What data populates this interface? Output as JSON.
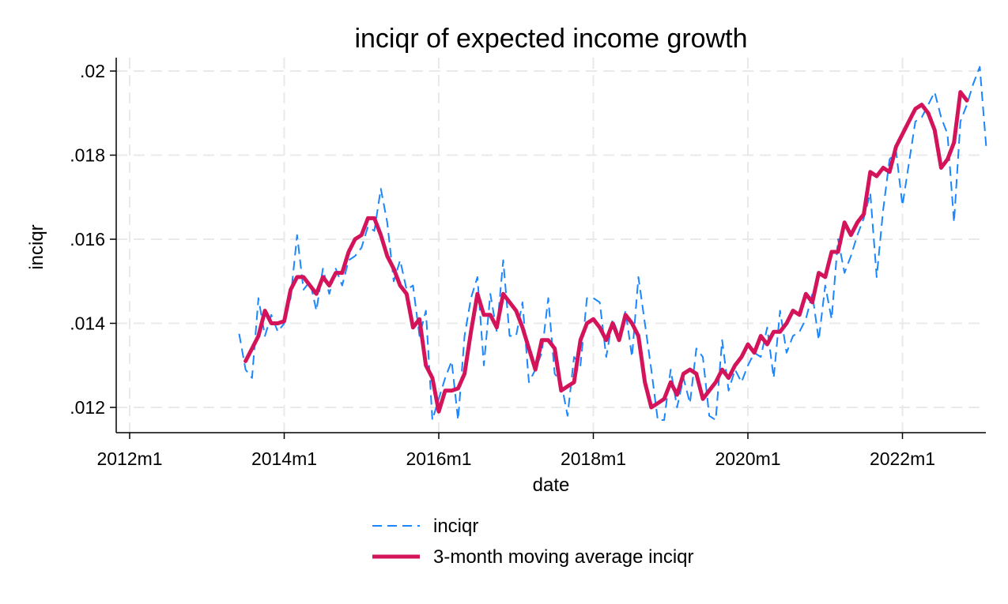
{
  "chart_data": {
    "type": "line",
    "title": "inciqr of expected income growth",
    "xlabel": "date",
    "ylabel": "inciqr",
    "xlim": [
      "2011-10",
      "2022-12"
    ],
    "ylim": [
      0.0114,
      0.0203
    ],
    "x_ticks": [
      {
        "value": "2012-01",
        "label": "2012m1"
      },
      {
        "value": "2014-01",
        "label": "2014m1"
      },
      {
        "value": "2016-01",
        "label": "2016m1"
      },
      {
        "value": "2018-01",
        "label": "2018m1"
      },
      {
        "value": "2020-01",
        "label": "2020m1"
      },
      {
        "value": "2022-01",
        "label": "2022m1"
      }
    ],
    "y_ticks": [
      {
        "value": 0.012,
        "label": ".012"
      },
      {
        "value": 0.014,
        "label": ".014"
      },
      {
        "value": 0.016,
        "label": ".016"
      },
      {
        "value": 0.018,
        "label": ".018"
      },
      {
        "value": 0.02,
        "label": ".02"
      }
    ],
    "grid": true,
    "legend_position": "bottom",
    "series": [
      {
        "name": "inciqr",
        "color": "#1a86ff",
        "style": "dashed",
        "points": [
          [
            "2013-06",
            0.01375
          ],
          [
            "2013-07",
            0.0129
          ],
          [
            "2013-08",
            0.0127
          ],
          [
            "2013-09",
            0.0146
          ],
          [
            "2013-10",
            0.0137
          ],
          [
            "2013-11",
            0.0142
          ],
          [
            "2013-12",
            0.0138
          ],
          [
            "2014-01",
            0.014
          ],
          [
            "2014-02",
            0.0146
          ],
          [
            "2014-03",
            0.0161
          ],
          [
            "2014-04",
            0.0148
          ],
          [
            "2014-05",
            0.015
          ],
          [
            "2014-06",
            0.0143
          ],
          [
            "2014-07",
            0.0153
          ],
          [
            "2014-08",
            0.0147
          ],
          [
            "2014-09",
            0.0153
          ],
          [
            "2014-10",
            0.0149
          ],
          [
            "2014-11",
            0.0155
          ],
          [
            "2014-12",
            0.0156
          ],
          [
            "2015-01",
            0.0158
          ],
          [
            "2015-02",
            0.0163
          ],
          [
            "2015-03",
            0.0162
          ],
          [
            "2015-04",
            0.0172
          ],
          [
            "2015-05",
            0.0164
          ],
          [
            "2015-06",
            0.015
          ],
          [
            "2015-07",
            0.0155
          ],
          [
            "2015-08",
            0.0148
          ],
          [
            "2015-09",
            0.0149
          ],
          [
            "2015-10",
            0.0137
          ],
          [
            "2015-11",
            0.0143
          ],
          [
            "2015-12",
            0.0117
          ],
          [
            "2016-01",
            0.0122
          ],
          [
            "2016-02",
            0.0127
          ],
          [
            "2016-03",
            0.0131
          ],
          [
            "2016-04",
            0.0117
          ],
          [
            "2016-05",
            0.0137
          ],
          [
            "2016-06",
            0.0146
          ],
          [
            "2016-07",
            0.0151
          ],
          [
            "2016-08",
            0.013
          ],
          [
            "2016-09",
            0.0147
          ],
          [
            "2016-10",
            0.0138
          ],
          [
            "2016-11",
            0.0155
          ],
          [
            "2016-12",
            0.0137
          ],
          [
            "2017-01",
            0.0137
          ],
          [
            "2017-02",
            0.0145
          ],
          [
            "2017-03",
            0.0126
          ],
          [
            "2017-04",
            0.0129
          ],
          [
            "2017-05",
            0.0133
          ],
          [
            "2017-06",
            0.0146
          ],
          [
            "2017-07",
            0.0128
          ],
          [
            "2017-08",
            0.0126
          ],
          [
            "2017-09",
            0.0118
          ],
          [
            "2017-10",
            0.0132
          ],
          [
            "2017-11",
            0.013
          ],
          [
            "2017-12",
            0.0146
          ],
          [
            "2018-01",
            0.0146
          ],
          [
            "2018-02",
            0.0145
          ],
          [
            "2018-03",
            0.0132
          ],
          [
            "2018-04",
            0.0141
          ],
          [
            "2018-05",
            0.0137
          ],
          [
            "2018-06",
            0.0143
          ],
          [
            "2018-07",
            0.0132
          ],
          [
            "2018-08",
            0.0151
          ],
          [
            "2018-09",
            0.014
          ],
          [
            "2018-10",
            0.0129
          ],
          [
            "2018-11",
            0.0117
          ],
          [
            "2018-12",
            0.0117
          ],
          [
            "2019-01",
            0.0129
          ],
          [
            "2019-02",
            0.012
          ],
          [
            "2019-03",
            0.0127
          ],
          [
            "2019-04",
            0.0121
          ],
          [
            "2019-05",
            0.0134
          ],
          [
            "2019-06",
            0.0132
          ],
          [
            "2019-07",
            0.0118
          ],
          [
            "2019-08",
            0.0117
          ],
          [
            "2019-09",
            0.0136
          ],
          [
            "2019-10",
            0.0124
          ],
          [
            "2019-11",
            0.0129
          ],
          [
            "2019-12",
            0.0126
          ],
          [
            "2020-01",
            0.013
          ],
          [
            "2020-02",
            0.0133
          ],
          [
            "2020-03",
            0.0132
          ],
          [
            "2020-04",
            0.0139
          ],
          [
            "2020-05",
            0.0127
          ],
          [
            "2020-06",
            0.0143
          ],
          [
            "2020-07",
            0.0133
          ],
          [
            "2020-08",
            0.0137
          ],
          [
            "2020-09",
            0.0138
          ],
          [
            "2020-10",
            0.0141
          ],
          [
            "2020-11",
            0.0147
          ],
          [
            "2020-12",
            0.0136
          ],
          [
            "2021-01",
            0.0149
          ],
          [
            "2021-02",
            0.0141
          ],
          [
            "2021-03",
            0.016
          ],
          [
            "2021-04",
            0.0152
          ],
          [
            "2021-05",
            0.0156
          ],
          [
            "2021-06",
            0.0161
          ],
          [
            "2021-07",
            0.0165
          ],
          [
            "2021-08",
            0.0171
          ],
          [
            "2021-09",
            0.0151
          ],
          [
            "2021-10",
            0.0167
          ],
          [
            "2021-11",
            0.0179
          ],
          [
            "2021-12",
            0.0181
          ],
          [
            "2022-01",
            0.0168
          ],
          [
            "2022-02",
            0.0178
          ],
          [
            "2022-03",
            0.0188
          ],
          [
            "2022-04",
            0.0189
          ],
          [
            "2022-05",
            0.0192
          ],
          [
            "2022-06",
            0.0195
          ],
          [
            "2022-07",
            0.0189
          ],
          [
            "2022-08",
            0.0185
          ],
          [
            "2022-09",
            0.0164
          ],
          [
            "2022-10",
            0.0188
          ],
          [
            "2022-11",
            0.0192
          ],
          [
            "2022-12",
            0.0197
          ],
          [
            "2023-01",
            0.0201
          ],
          [
            "2023-02",
            0.0182
          ]
        ]
      },
      {
        "name": "3-month moving average inciqr",
        "color": "#d4145a",
        "style": "solid",
        "points": [
          [
            "2013-07",
            0.0131
          ],
          [
            "2013-08",
            0.0134
          ],
          [
            "2013-09",
            0.0137
          ],
          [
            "2013-10",
            0.0143
          ],
          [
            "2013-11",
            0.014
          ],
          [
            "2013-12",
            0.014
          ],
          [
            "2014-01",
            0.01405
          ],
          [
            "2014-02",
            0.0148
          ],
          [
            "2014-03",
            0.0151
          ],
          [
            "2014-04",
            0.0151
          ],
          [
            "2014-05",
            0.0149
          ],
          [
            "2014-06",
            0.0147
          ],
          [
            "2014-07",
            0.0151
          ],
          [
            "2014-08",
            0.0149
          ],
          [
            "2014-09",
            0.0152
          ],
          [
            "2014-10",
            0.0152
          ],
          [
            "2014-11",
            0.0157
          ],
          [
            "2014-12",
            0.016
          ],
          [
            "2015-01",
            0.0161
          ],
          [
            "2015-02",
            0.0165
          ],
          [
            "2015-03",
            0.0165
          ],
          [
            "2015-04",
            0.0161
          ],
          [
            "2015-05",
            0.0156
          ],
          [
            "2015-06",
            0.0153
          ],
          [
            "2015-07",
            0.0149
          ],
          [
            "2015-08",
            0.0147
          ],
          [
            "2015-09",
            0.0139
          ],
          [
            "2015-10",
            0.0141
          ],
          [
            "2015-11",
            0.013
          ],
          [
            "2015-12",
            0.0127
          ],
          [
            "2016-01",
            0.0119
          ],
          [
            "2016-02",
            0.0124
          ],
          [
            "2016-03",
            0.0124
          ],
          [
            "2016-04",
            0.01245
          ],
          [
            "2016-05",
            0.0128
          ],
          [
            "2016-06",
            0.0138
          ],
          [
            "2016-07",
            0.0147
          ],
          [
            "2016-08",
            0.0142
          ],
          [
            "2016-09",
            0.0142
          ],
          [
            "2016-10",
            0.0139
          ],
          [
            "2016-11",
            0.0147
          ],
          [
            "2016-12",
            0.0145
          ],
          [
            "2017-01",
            0.0143
          ],
          [
            "2017-02",
            0.0139
          ],
          [
            "2017-03",
            0.0134
          ],
          [
            "2017-04",
            0.0129
          ],
          [
            "2017-05",
            0.0136
          ],
          [
            "2017-06",
            0.0136
          ],
          [
            "2017-07",
            0.0134
          ],
          [
            "2017-08",
            0.0124
          ],
          [
            "2017-09",
            0.0125
          ],
          [
            "2017-10",
            0.0126
          ],
          [
            "2017-11",
            0.0136
          ],
          [
            "2017-12",
            0.014
          ],
          [
            "2018-01",
            0.0141
          ],
          [
            "2018-02",
            0.0139
          ],
          [
            "2018-03",
            0.0136
          ],
          [
            "2018-04",
            0.014
          ],
          [
            "2018-05",
            0.0136
          ],
          [
            "2018-06",
            0.0142
          ],
          [
            "2018-07",
            0.014
          ],
          [
            "2018-08",
            0.0137
          ],
          [
            "2018-09",
            0.0126
          ],
          [
            "2018-10",
            0.012
          ],
          [
            "2018-11",
            0.0121
          ],
          [
            "2018-12",
            0.0122
          ],
          [
            "2019-01",
            0.0126
          ],
          [
            "2019-02",
            0.0123
          ],
          [
            "2019-03",
            0.0128
          ],
          [
            "2019-04",
            0.0129
          ],
          [
            "2019-05",
            0.0128
          ],
          [
            "2019-06",
            0.0122
          ],
          [
            "2019-07",
            0.0124
          ],
          [
            "2019-08",
            0.0126
          ],
          [
            "2019-09",
            0.0129
          ],
          [
            "2019-10",
            0.0127
          ],
          [
            "2019-11",
            0.013
          ],
          [
            "2019-12",
            0.0132
          ],
          [
            "2020-01",
            0.0135
          ],
          [
            "2020-02",
            0.0133
          ],
          [
            "2020-03",
            0.0137
          ],
          [
            "2020-04",
            0.0135
          ],
          [
            "2020-05",
            0.0138
          ],
          [
            "2020-06",
            0.0138
          ],
          [
            "2020-07",
            0.014
          ],
          [
            "2020-08",
            0.0143
          ],
          [
            "2020-09",
            0.0142
          ],
          [
            "2020-10",
            0.0147
          ],
          [
            "2020-11",
            0.0145
          ],
          [
            "2020-12",
            0.0152
          ],
          [
            "2021-01",
            0.0151
          ],
          [
            "2021-02",
            0.0157
          ],
          [
            "2021-03",
            0.0157
          ],
          [
            "2021-04",
            0.0164
          ],
          [
            "2021-05",
            0.0161
          ],
          [
            "2021-06",
            0.0164
          ],
          [
            "2021-07",
            0.0166
          ],
          [
            "2021-08",
            0.0176
          ],
          [
            "2021-09",
            0.0175
          ],
          [
            "2021-10",
            0.0177
          ],
          [
            "2021-11",
            0.0176
          ],
          [
            "2021-12",
            0.0182
          ],
          [
            "2022-01",
            0.0185
          ],
          [
            "2022-02",
            0.0188
          ],
          [
            "2022-03",
            0.0191
          ],
          [
            "2022-04",
            0.0192
          ],
          [
            "2022-05",
            0.019
          ],
          [
            "2022-06",
            0.0186
          ],
          [
            "2022-07",
            0.0177
          ],
          [
            "2022-08",
            0.0179
          ],
          [
            "2022-09",
            0.0183
          ],
          [
            "2022-10",
            0.0195
          ],
          [
            "2022-11",
            0.0193
          ]
        ]
      }
    ]
  }
}
